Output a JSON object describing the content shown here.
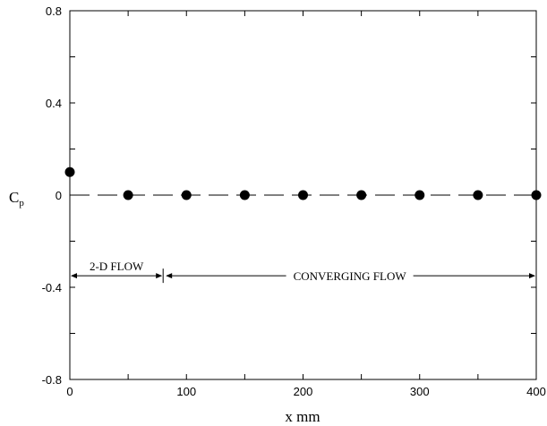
{
  "chart_data": {
    "type": "scatter",
    "title": "",
    "xlabel": "x mm",
    "ylabel": "C",
    "ylabel_subscript": "p",
    "xlim": [
      0,
      400
    ],
    "ylim": [
      -0.8,
      0.8
    ],
    "x_ticks": [
      0,
      100,
      200,
      300,
      400
    ],
    "y_ticks": [
      -0.8,
      -0.4,
      0,
      0.4,
      0.8
    ],
    "x_tick_labels": [
      "0",
      "100",
      "200",
      "300",
      "400"
    ],
    "y_tick_labels": [
      "-0.8",
      "-0.4",
      "0",
      "0.4",
      "0.8"
    ],
    "grid": false,
    "reference_line": {
      "y": 0,
      "style": "dashed"
    },
    "series": [
      {
        "x": [
          0,
          50,
          100,
          150,
          200,
          250,
          300,
          350,
          400
        ],
        "y": [
          0.1,
          0,
          0,
          0,
          0,
          0,
          0,
          0,
          0
        ]
      }
    ],
    "annotations": [
      {
        "text": "2-D FLOW",
        "x_start": 0,
        "x_end": 80,
        "y": -0.35
      },
      {
        "text": "CONVERGING FLOW",
        "x_start": 80,
        "x_end": 400,
        "y": -0.35
      }
    ]
  }
}
